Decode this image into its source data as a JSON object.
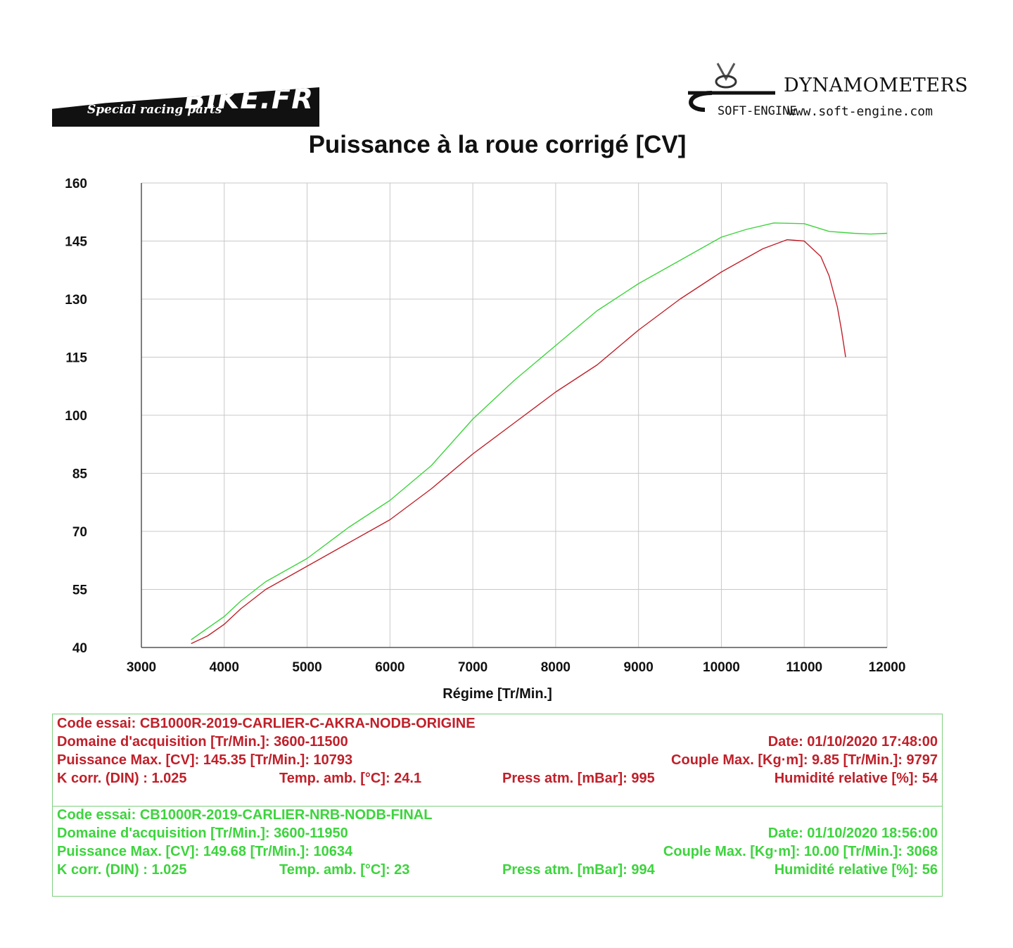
{
  "header": {
    "left_logo": {
      "brand": "BIKE.FR",
      "tagline": "Special racing parts"
    },
    "right_logo": {
      "name": "DYNAMOMETERS",
      "mark": "SOFT-ENGINE",
      "url": "www.soft-engine.com"
    }
  },
  "colors": {
    "run1": "#c0202a",
    "run2": "#3dd43d",
    "grid": "#c8c8c8",
    "box_border": "#7fcf7f"
  },
  "chart_data": {
    "type": "line",
    "title": "Puissance à la roue corrigé [CV]",
    "xlabel": "Régime [Tr/Min.]",
    "ylabel": "",
    "xlim": [
      3000,
      12000
    ],
    "ylim": [
      40,
      160
    ],
    "x_ticks": [
      "3000",
      "4000",
      "5000",
      "6000",
      "7000",
      "8000",
      "9000",
      "10000",
      "11000",
      "12000"
    ],
    "y_ticks": [
      "160",
      "145",
      "130",
      "115",
      "100",
      "85",
      "70",
      "55",
      "40"
    ],
    "grid": true,
    "series": [
      {
        "color": "#c0202a",
        "x": [
          3600,
          3800,
          4000,
          4200,
          4500,
          5000,
          5500,
          6000,
          6500,
          7000,
          7500,
          8000,
          8500,
          9000,
          9500,
          10000,
          10500,
          10793,
          11000,
          11200,
          11300,
          11400,
          11450,
          11500
        ],
        "y": [
          41,
          43,
          46,
          50,
          55,
          61,
          67,
          73,
          81,
          90,
          98,
          106,
          113,
          122,
          130,
          137,
          143,
          145.35,
          145,
          141,
          136,
          128,
          122,
          115
        ]
      },
      {
        "color": "#3dd43d",
        "x": [
          3600,
          3800,
          4000,
          4200,
          4500,
          5000,
          5500,
          6000,
          6500,
          7000,
          7500,
          8000,
          8500,
          9000,
          9500,
          10000,
          10300,
          10634,
          11000,
          11300,
          11600,
          11800,
          12000
        ],
        "y": [
          42,
          45,
          48,
          52,
          57,
          63,
          71,
          78,
          87,
          99,
          109,
          118,
          127,
          134,
          140,
          146,
          148,
          149.68,
          149.5,
          147.5,
          147,
          146.8,
          147
        ]
      }
    ]
  },
  "runs": [
    {
      "code": "Code essai: CB1000R-2019-CARLIER-C-AKRA-NODB-ORIGINE",
      "domain": "Domaine d'acquisition [Tr/Min.]: 3600-11500",
      "date": "Date: 01/10/2020   17:48:00",
      "power": "Puissance Max. [CV]: 145.35   [Tr/Min.]: 10793",
      "couple": "Couple Max. [Kg·m]: 9.85   [Tr/Min.]: 9797",
      "kcorr": "K corr. (DIN) : 1.025",
      "temp": "Temp. amb. [°C]: 24.1",
      "press": "Press atm. [mBar]: 995",
      "humid": "Humidité relative [%]: 54"
    },
    {
      "code": "Code essai: CB1000R-2019-CARLIER-NRB-NODB-FINAL",
      "domain": "Domaine d'acquisition [Tr/Min.]: 3600-11950",
      "date": "Date: 01/10/2020   18:56:00",
      "power": "Puissance Max. [CV]: 149.68   [Tr/Min.]: 10634",
      "couple": "Couple Max. [Kg·m]: 10.00   [Tr/Min.]: 3068",
      "kcorr": "K corr. (DIN) : 1.025",
      "temp": "Temp. amb. [°C]: 23",
      "press": "Press atm. [mBar]: 994",
      "humid": "Humidité relative [%]: 56"
    }
  ]
}
